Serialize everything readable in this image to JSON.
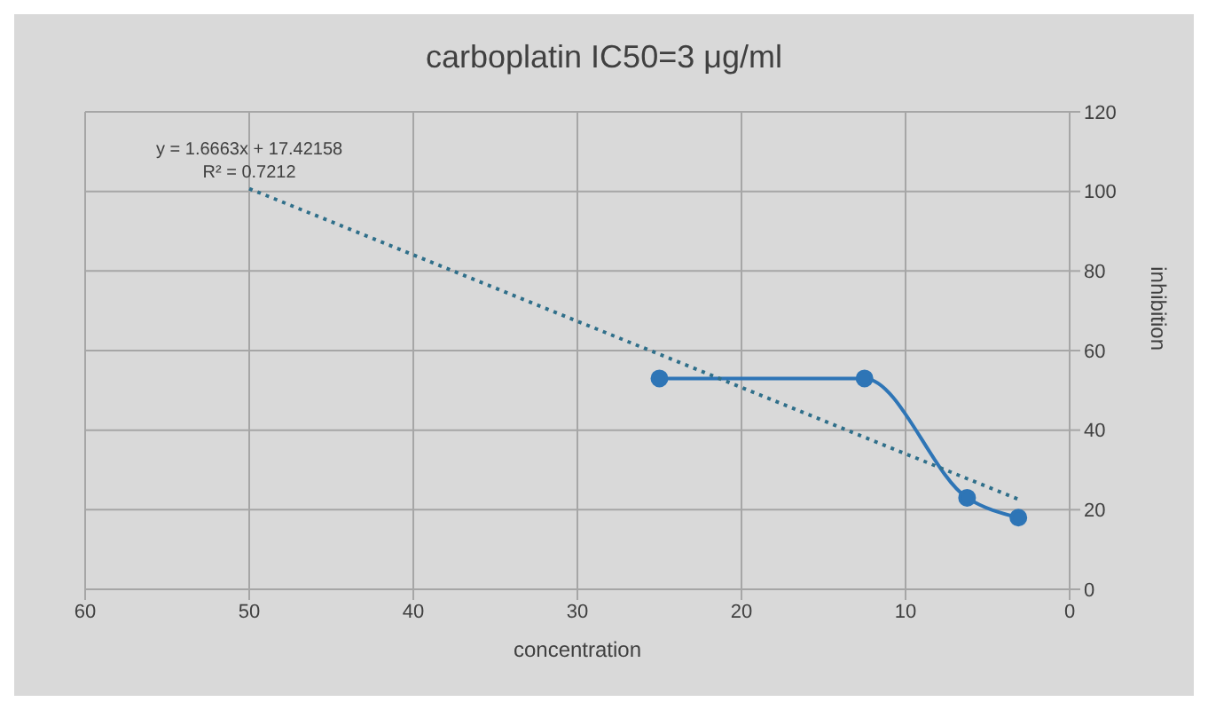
{
  "chart_data": {
    "type": "line",
    "title": "carboplatin IC50=3 μg/ml",
    "xlabel": "concentration",
    "ylabel": "inhibition",
    "xlim": [
      60,
      0
    ],
    "xticks": [
      60,
      50,
      40,
      30,
      20,
      10,
      0
    ],
    "ylim": [
      0,
      120
    ],
    "yticks": [
      0,
      20,
      40,
      60,
      80,
      100,
      120
    ],
    "grid": true,
    "marker": "circle",
    "annotations": [
      "y = 1.6663x + 17.42158",
      "R² = 0.7212"
    ],
    "series": [
      {
        "color": "#2e75b6",
        "x": [
          25,
          12.5,
          6.25,
          3.125
        ],
        "values": [
          53,
          53,
          23,
          18
        ]
      },
      {
        "color": "#2f6f8a",
        "line_style": "dotted",
        "marker": "none",
        "x": [
          50,
          3
        ],
        "values": [
          100.7,
          22.4
        ]
      }
    ]
  }
}
